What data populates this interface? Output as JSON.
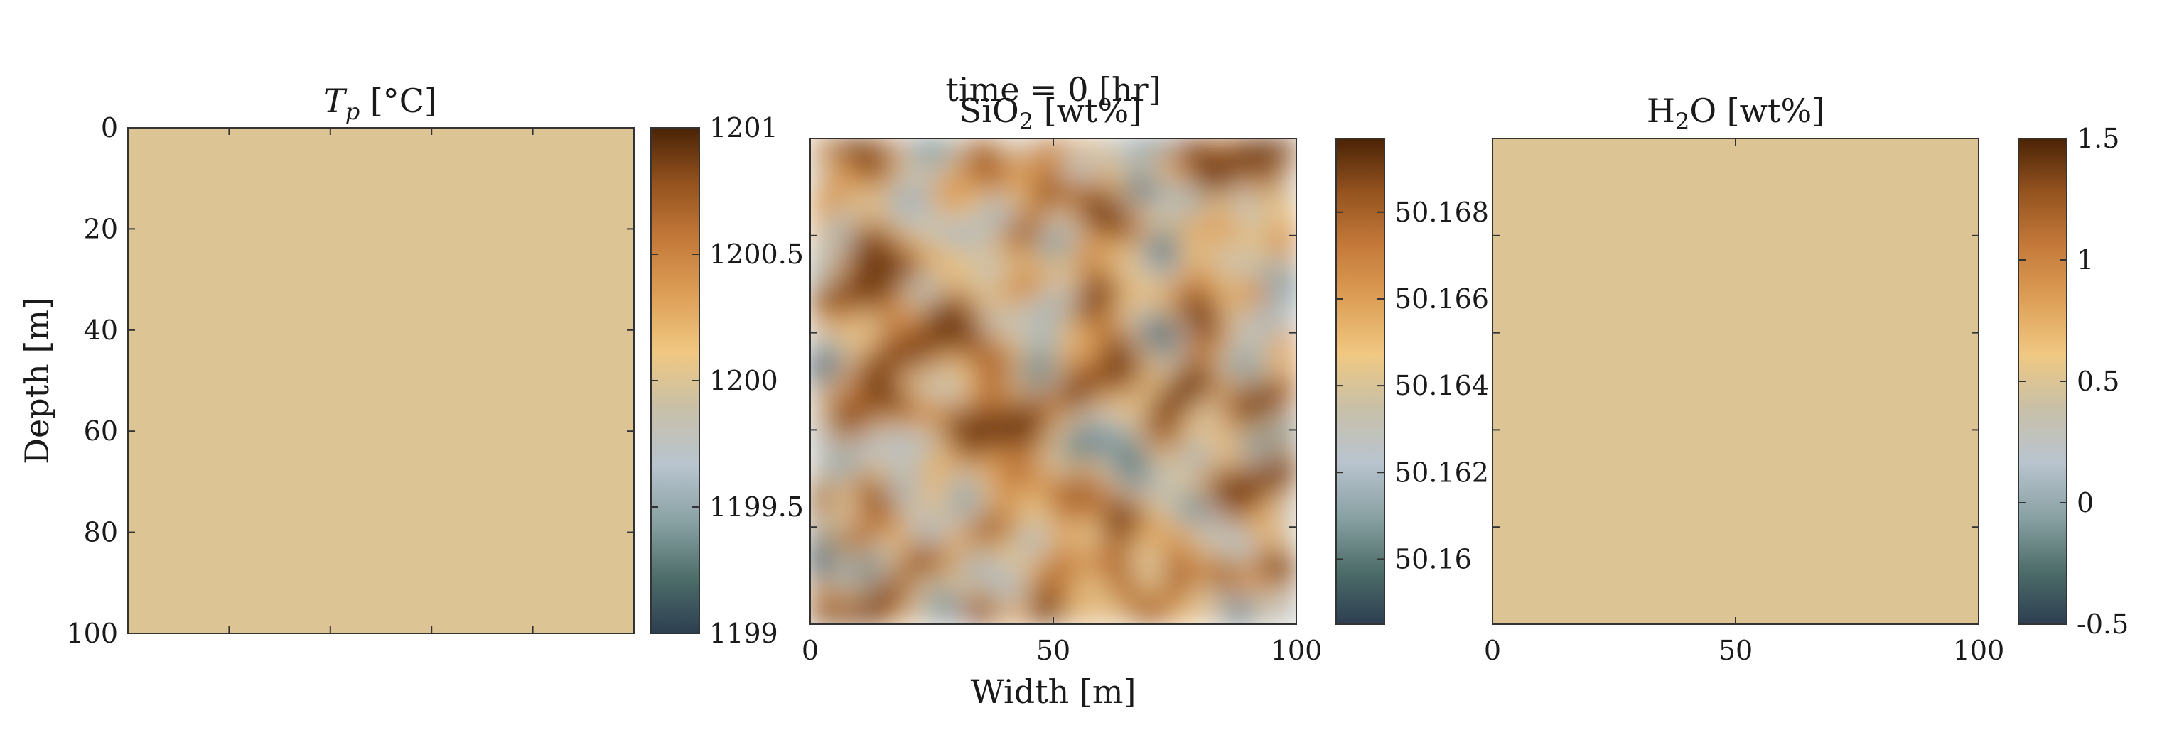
{
  "figure": {
    "suptitle": "time = 0 [hr]",
    "colormap": [
      "#2c3e50",
      "#4e6e6a",
      "#8aa2a4",
      "#b9c4cf",
      "#c8c0a8",
      "#f0c882",
      "#dea058",
      "#c57a3a",
      "#95531f",
      "#4a2306"
    ],
    "axes_box_color": "#333333"
  },
  "chart_data": [
    {
      "type": "heatmap",
      "title": "T_p [°C]",
      "title_parts": {
        "main": "T",
        "sub": "p",
        "rest": " [°C]"
      },
      "ylabel": "Depth [m]",
      "xlabel": "",
      "x_range": [
        0,
        100
      ],
      "y_range": [
        0,
        100
      ],
      "y_ticks": [
        "0",
        "20",
        "40",
        "60",
        "80",
        "100"
      ],
      "x_ticks": [],
      "field": "uniform",
      "uniform_value": 1200,
      "colorbar": {
        "range": [
          1199,
          1201
        ],
        "ticks": [
          "1199",
          "1199.5",
          "1200",
          "1200.5",
          "1201"
        ]
      }
    },
    {
      "type": "heatmap",
      "title": "SiO2 [wt%]",
      "title_parts": {
        "main": "SiO",
        "sub": "2",
        "rest": " [wt%]"
      },
      "ylabel": "",
      "xlabel": "Width [m]",
      "x_range": [
        0,
        100
      ],
      "y_range": [
        0,
        100
      ],
      "x_ticks": [
        "0",
        "50",
        "100"
      ],
      "y_ticks": [],
      "field": "random-smooth",
      "value_range": [
        50.158,
        50.17
      ],
      "colorbar": {
        "range": [
          50.1585,
          50.1697
        ],
        "ticks": [
          "50.16",
          "50.162",
          "50.164",
          "50.166",
          "50.168"
        ]
      }
    },
    {
      "type": "heatmap",
      "title": "H2O [wt%]",
      "title_parts": {
        "main": "H",
        "sub": "2",
        "rest": "O [wt%]"
      },
      "ylabel": "",
      "xlabel": "",
      "x_range": [
        0,
        100
      ],
      "y_range": [
        0,
        100
      ],
      "x_ticks": [
        "0",
        "50",
        "100"
      ],
      "y_ticks": [],
      "field": "uniform",
      "uniform_value": 0.5,
      "colorbar": {
        "range": [
          -0.5,
          1.5
        ],
        "ticks": [
          "-0.5",
          "0",
          "0.5",
          "1",
          "1.5"
        ]
      }
    }
  ]
}
